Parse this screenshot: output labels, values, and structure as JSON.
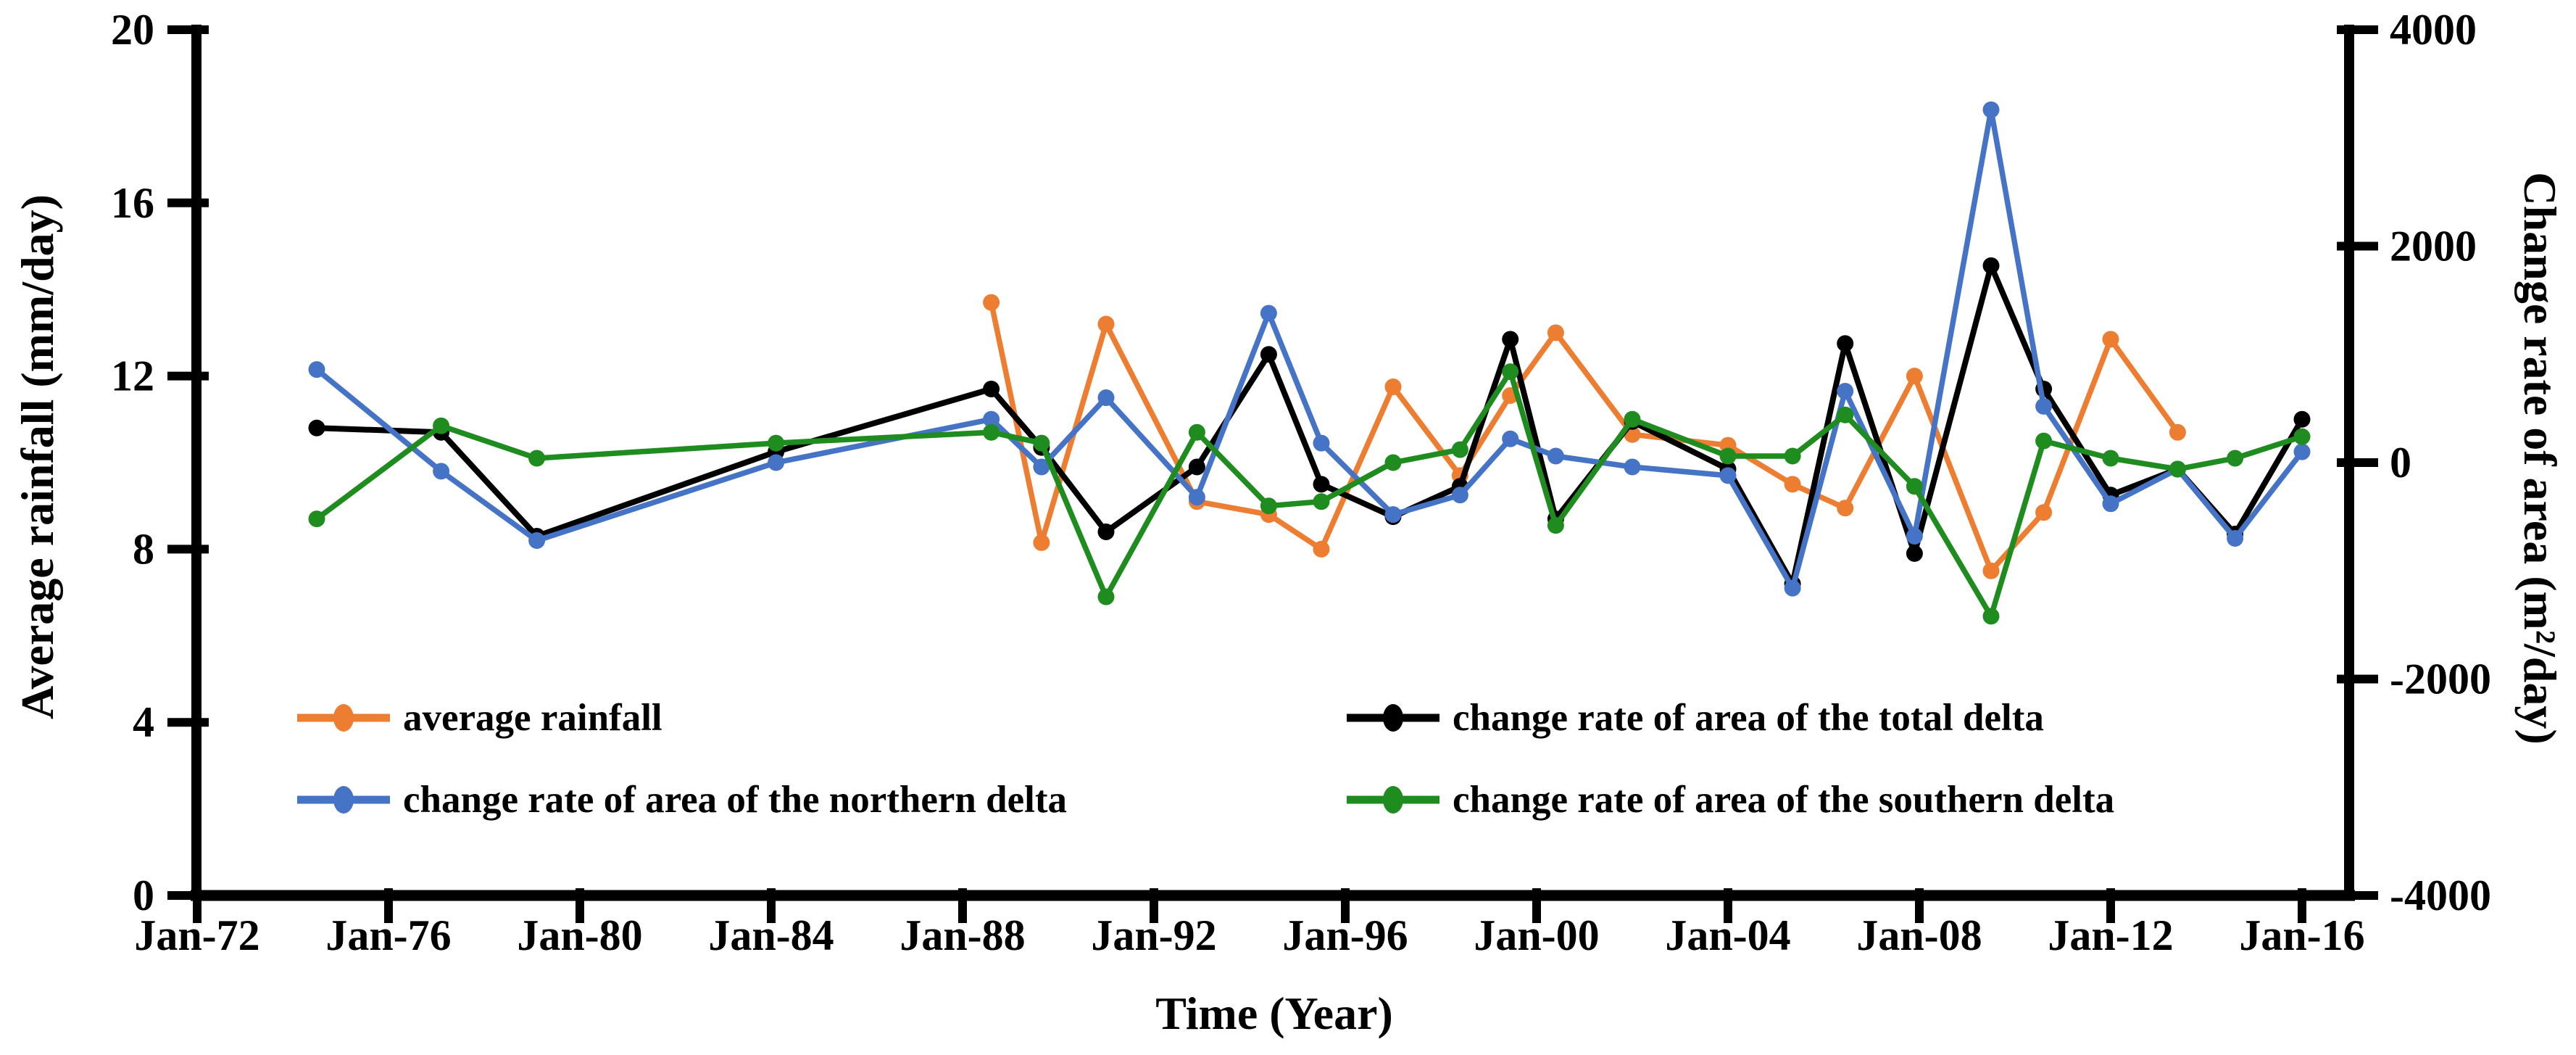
{
  "figure": {
    "background": "#ffffff"
  },
  "axes": {
    "left": {
      "title": "Average rainfall (mm/day)",
      "range": [
        0,
        20
      ],
      "ticks": [
        {
          "label": "20",
          "value": 20
        },
        {
          "label": "16",
          "value": 16
        },
        {
          "label": "12",
          "value": 12
        },
        {
          "label": "8",
          "value": 8
        },
        {
          "label": "4",
          "value": 4
        },
        {
          "label": "0",
          "value": 0
        }
      ]
    },
    "right": {
      "title": "Change rate of area (m²/day)",
      "range": [
        -4000,
        4000
      ],
      "ticks": [
        {
          "label": "4000",
          "value": 4000
        },
        {
          "label": "2000",
          "value": 2000
        },
        {
          "label": "0",
          "value": 0
        },
        {
          "label": "-2000",
          "value": -2000
        },
        {
          "label": "-4000",
          "value": -4000
        }
      ]
    },
    "bottom": {
      "title": "Time (Year)",
      "ticks": [
        {
          "label": "Jan-72",
          "year": 1972
        },
        {
          "label": "Jan-76",
          "year": 1976
        },
        {
          "label": "Jan-80",
          "year": 1980
        },
        {
          "label": "Jan-84",
          "year": 1984
        },
        {
          "label": "Jan-88",
          "year": 1988
        },
        {
          "label": "Jan-92",
          "year": 1992
        },
        {
          "label": "Jan-96",
          "year": 1996
        },
        {
          "label": "Jan-00",
          "year": 2000
        },
        {
          "label": "Jan-04",
          "year": 2004
        },
        {
          "label": "Jan-08",
          "year": 2008
        },
        {
          "label": "Jan-12",
          "year": 2012
        },
        {
          "label": "Jan-16",
          "year": 2016
        }
      ]
    }
  },
  "legend": {
    "items": [
      {
        "label": "average rainfall",
        "color": "#ED7D31",
        "series": "average-rainfall",
        "col": 0,
        "row": 0
      },
      {
        "label": "change rate of area of the total delta",
        "color": "#000000",
        "series": "total-delta",
        "col": 1,
        "row": 0
      },
      {
        "label": "change rate of area of the northern delta",
        "color": "#4574C6",
        "series": "northern-delta",
        "col": 0,
        "row": 1
      },
      {
        "label": "change rate of area of the southern delta",
        "color": "#1E8C1E",
        "series": "southern-delta",
        "col": 1,
        "row": 1
      }
    ]
  },
  "chart_data": {
    "type": "line",
    "title": "",
    "xlabel": "Time (Year)",
    "x_range_years": [
      1972,
      2016
    ],
    "x_tick_interval_years": 4,
    "y_left": {
      "label": "Average rainfall (mm/day)",
      "range": [
        0,
        20
      ]
    },
    "y_right": {
      "label": "Change rate of area (m²/day)",
      "range": [
        -4000,
        4000
      ]
    },
    "grid": false,
    "legend_position": "inside-bottom",
    "series": [
      {
        "name": "average rainfall",
        "axis": "left",
        "unit": "mm/day",
        "color": "#ED7D31",
        "x": [
          1988.6,
          1989.65,
          1991.0,
          1992.9,
          1994.4,
          1995.5,
          1997.0,
          1998.4,
          1999.45,
          2000.4,
          2002.0,
          2004.0,
          2005.35,
          2006.45,
          2007.9,
          2009.5,
          2010.6,
          2012.0,
          2013.4
        ],
        "values": [
          13.7,
          8.15,
          13.2,
          9.1,
          8.8,
          8.0,
          11.75,
          9.7,
          11.55,
          13.0,
          10.65,
          10.4,
          9.5,
          8.95,
          12.0,
          7.5,
          8.85,
          12.85,
          10.7
        ]
      },
      {
        "name": "change rate of area of the total delta",
        "axis": "right",
        "unit": "m²/day",
        "color": "#000000",
        "x": [
          1974.5,
          1977.1,
          1979.1,
          1984.1,
          1988.6,
          1989.65,
          1991.0,
          1992.9,
          1994.4,
          1995.5,
          1997.0,
          1998.4,
          1999.45,
          2000.4,
          2002.0,
          2004.0,
          2005.35,
          2006.45,
          2007.9,
          2009.5,
          2010.6,
          2012.0,
          2013.4,
          2014.6,
          2016.0
        ],
        "values": [
          320,
          280,
          -680,
          100,
          680,
          140,
          -640,
          -40,
          1000,
          -200,
          -500,
          -220,
          1140,
          -520,
          380,
          -60,
          -1120,
          1100,
          -840,
          1820,
          680,
          -300,
          -60,
          -660,
          400
        ]
      },
      {
        "name": "change rate of area of the northern delta",
        "axis": "right",
        "unit": "m²/day",
        "color": "#4574C6",
        "x": [
          1974.5,
          1977.1,
          1979.1,
          1984.1,
          1988.6,
          1989.65,
          1991.0,
          1992.9,
          1994.4,
          1995.5,
          1997.0,
          1998.4,
          1999.45,
          2000.4,
          2002.0,
          2004.0,
          2005.35,
          2006.45,
          2007.9,
          2009.5,
          2010.6,
          2012.0,
          2013.4,
          2014.6,
          2016.0
        ],
        "values": [
          860,
          -80,
          -720,
          0,
          400,
          -40,
          600,
          -320,
          1380,
          180,
          -480,
          -300,
          220,
          60,
          -40,
          -120,
          -1160,
          660,
          -680,
          3260,
          520,
          -380,
          -60,
          -700,
          100
        ]
      },
      {
        "name": "change rate of area of the southern delta",
        "axis": "right",
        "unit": "m²/day",
        "color": "#1E8C1E",
        "x": [
          1974.5,
          1977.1,
          1979.1,
          1984.1,
          1988.6,
          1989.65,
          1991.0,
          1992.9,
          1994.4,
          1995.5,
          1997.0,
          1998.4,
          1999.45,
          2000.4,
          2002.0,
          2004.0,
          2005.35,
          2006.45,
          2007.9,
          2009.5,
          2010.6,
          2012.0,
          2013.4,
          2014.6,
          2016.0
        ],
        "values": [
          -520,
          340,
          40,
          180,
          280,
          180,
          -1240,
          280,
          -400,
          -360,
          0,
          120,
          840,
          -580,
          400,
          60,
          60,
          440,
          -220,
          -1420,
          200,
          40,
          -60,
          40,
          240
        ]
      }
    ]
  }
}
